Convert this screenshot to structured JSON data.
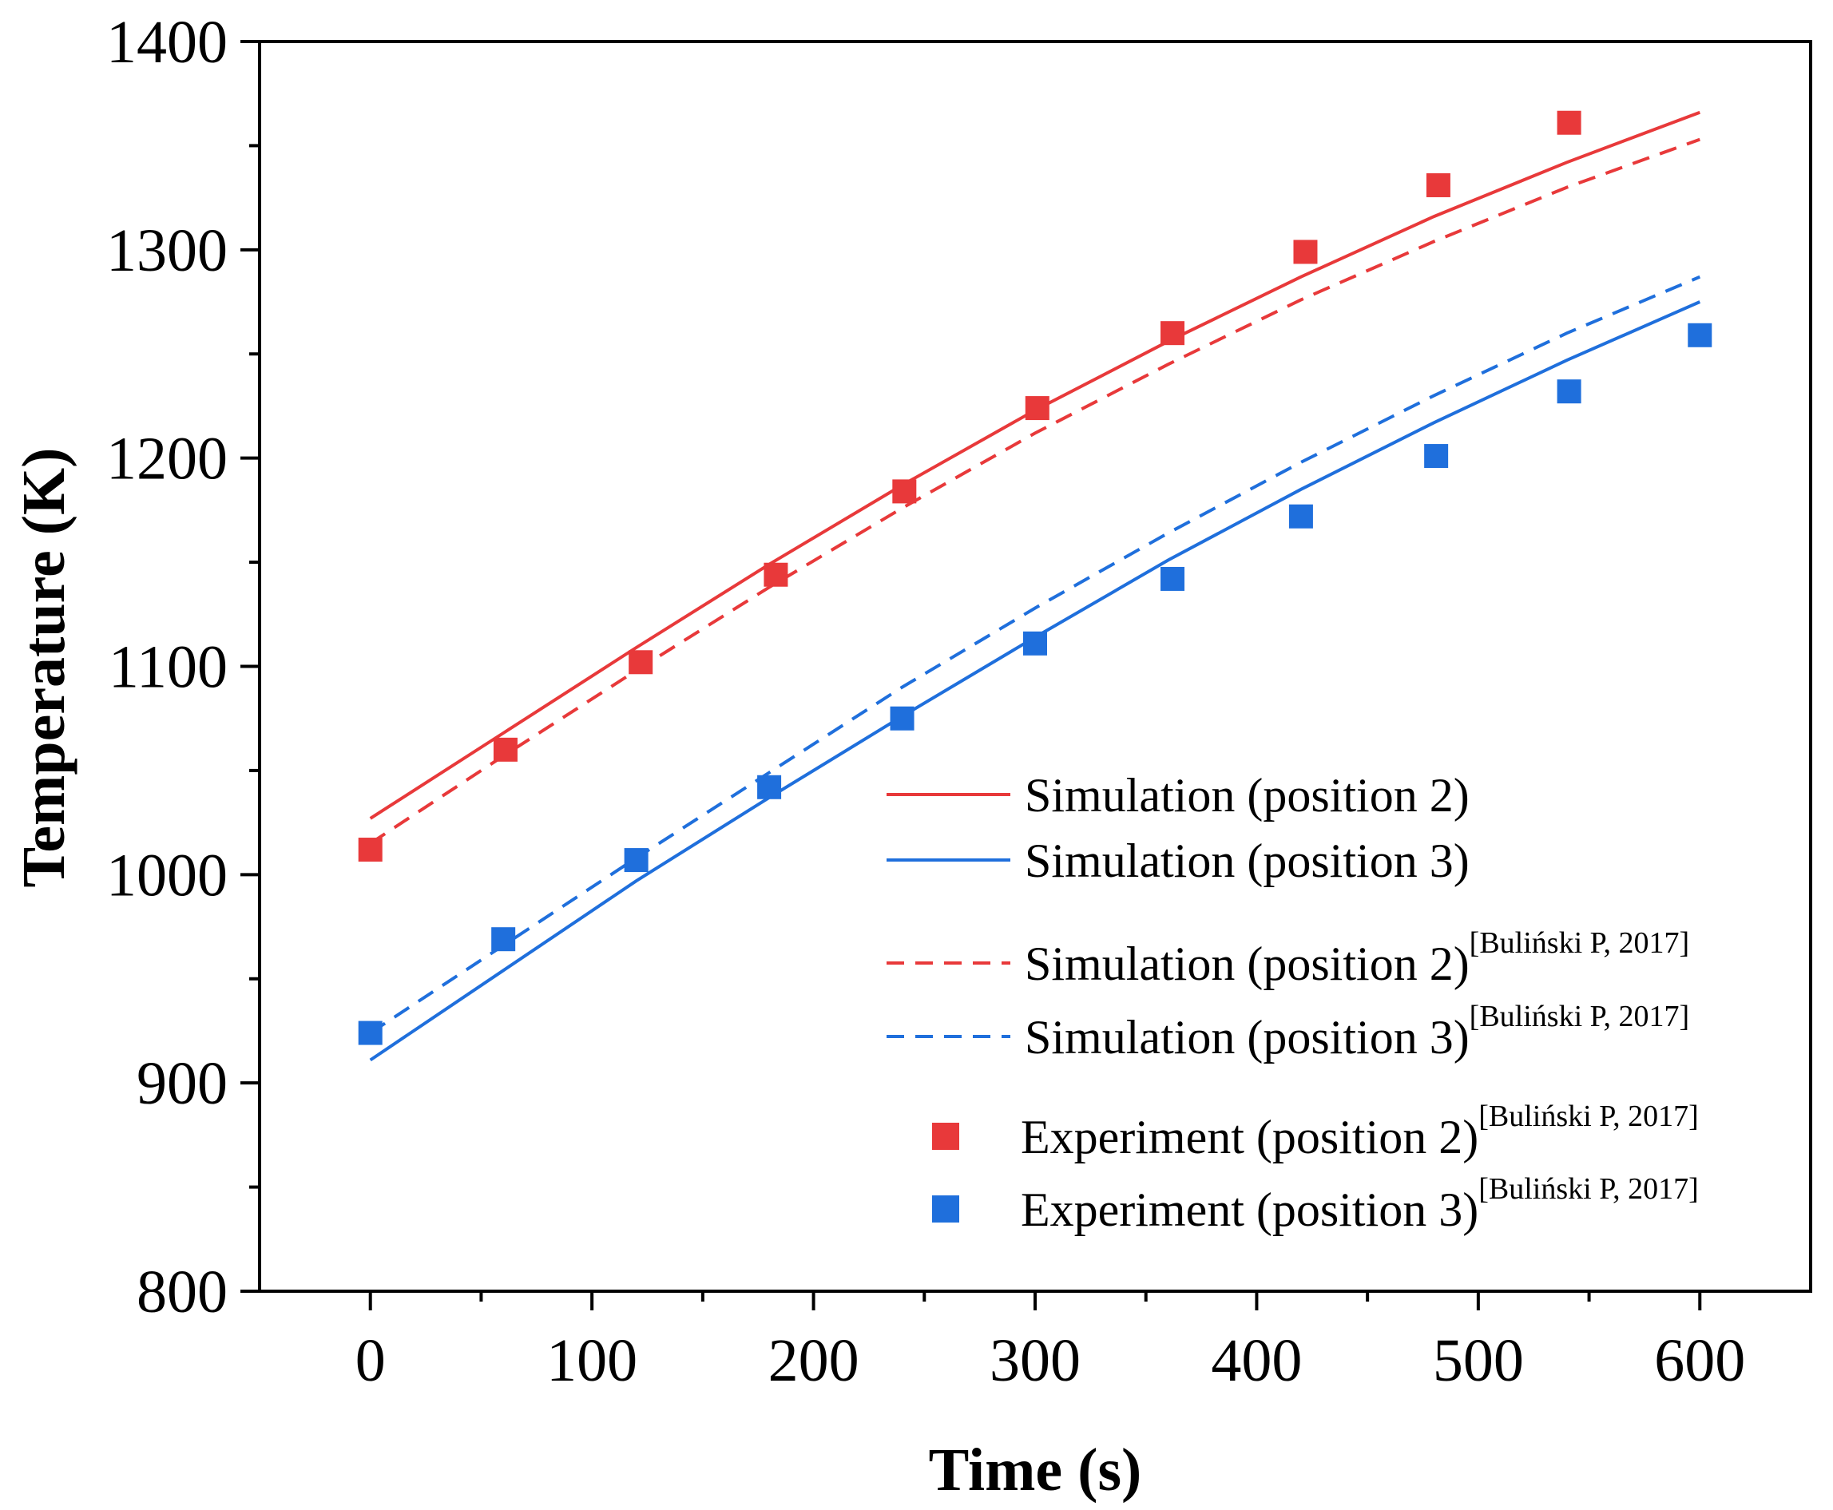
{
  "chart_data": {
    "type": "line",
    "title": "",
    "xlabel": "Time (s)",
    "ylabel": "Temperature (K)",
    "xlim": [
      -50,
      650
    ],
    "ylim": [
      800,
      1400
    ],
    "xticks": [
      0,
      100,
      200,
      300,
      400,
      500,
      600
    ],
    "xminor": [
      50,
      150,
      250,
      350,
      450,
      550
    ],
    "yticks": [
      800,
      900,
      1000,
      1100,
      1200,
      1300,
      1400
    ],
    "yminor": [
      850,
      950,
      1050,
      1150,
      1250,
      1350
    ],
    "series": [
      {
        "name": "Simulation (position 2)",
        "sup": "",
        "style": "solid",
        "color": "#e8393a",
        "x": [
          0,
          60,
          120,
          180,
          240,
          300,
          360,
          420,
          480,
          540,
          600
        ],
        "y": [
          1027,
          1068,
          1109,
          1149,
          1187,
          1223,
          1256,
          1287,
          1316,
          1342,
          1366
        ]
      },
      {
        "name": "Simulation (position 3)",
        "sup": "",
        "style": "solid",
        "color": "#1f6fdc",
        "x": [
          0,
          60,
          120,
          180,
          240,
          300,
          360,
          420,
          480,
          540,
          600
        ],
        "y": [
          911,
          954,
          997,
          1037,
          1076,
          1114,
          1151,
          1185,
          1217,
          1247,
          1275
        ]
      },
      {
        "name": "Simulation (position 2)",
        "sup": "[Buliński P, 2017]",
        "style": "dashed",
        "color": "#e8393a",
        "x": [
          0,
          60,
          120,
          180,
          240,
          300,
          360,
          420,
          480,
          540,
          600
        ],
        "y": [
          1015,
          1057,
          1098,
          1138,
          1176,
          1212,
          1245,
          1276,
          1304,
          1330,
          1353
        ]
      },
      {
        "name": "Simulation (position 3)",
        "sup": "[Buliński P, 2017]",
        "style": "dashed",
        "color": "#1f6fdc",
        "x": [
          0,
          60,
          120,
          180,
          240,
          300,
          360,
          420,
          480,
          540,
          600
        ],
        "y": [
          924,
          966,
          1008,
          1049,
          1090,
          1128,
          1164,
          1198,
          1230,
          1260,
          1287
        ]
      },
      {
        "name": "Experiment (position 2)",
        "sup": "[Buliński P, 2017]",
        "style": "marker",
        "color": "#e8393a",
        "x": [
          0,
          61,
          122,
          183,
          241,
          301,
          362,
          422,
          482,
          541,
          601
        ],
        "y": [
          1012,
          1060,
          1102,
          1144,
          1184,
          1224,
          1260,
          1299,
          1331,
          1361,
          null
        ]
      },
      {
        "name": "Experiment (position 3)",
        "sup": "[Buliński P, 2017]",
        "style": "marker",
        "color": "#1f6fdc",
        "x": [
          0,
          60,
          120,
          180,
          240,
          300,
          362,
          420,
          481,
          541,
          600
        ],
        "y": [
          924,
          969,
          1007,
          1042,
          1075,
          1111,
          1142,
          1172,
          1201,
          1232,
          1259
        ]
      }
    ]
  }
}
